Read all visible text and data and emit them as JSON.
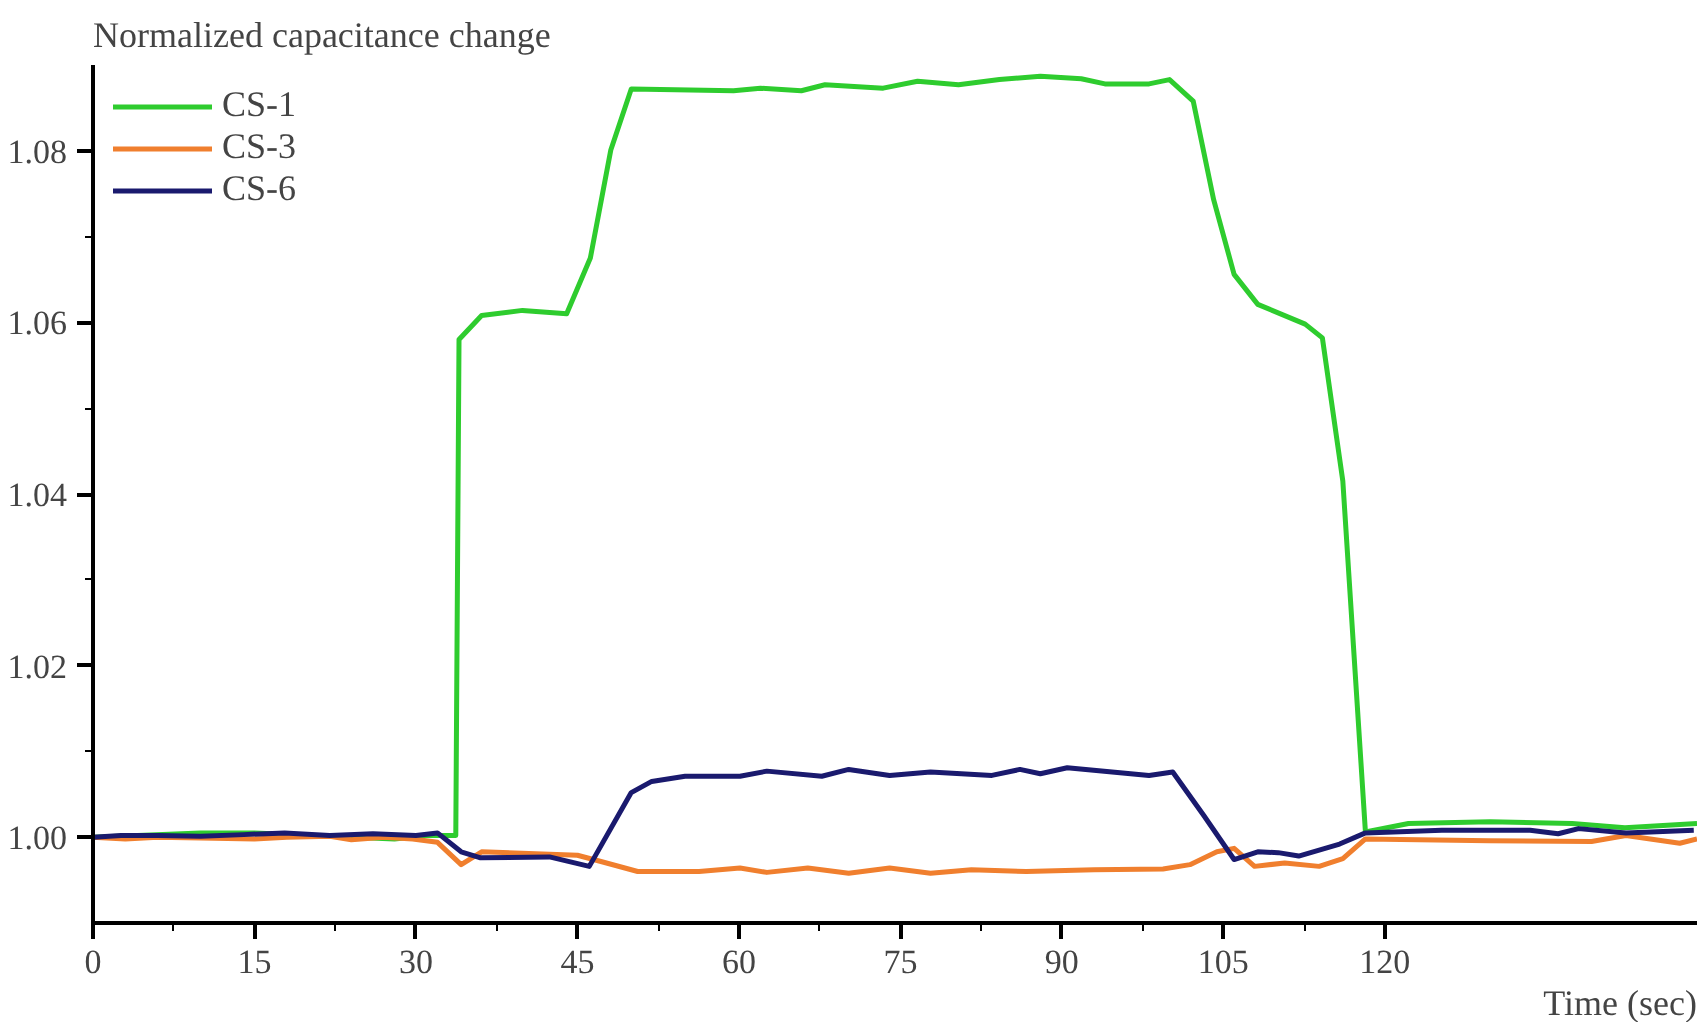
{
  "chart_data": {
    "type": "line",
    "ylabel": "Normalized capacitance change",
    "xlabel": "Time (sec)",
    "xlim": [
      0,
      149
    ],
    "ylim": [
      0.99,
      1.09
    ],
    "xticks": [
      0,
      15,
      30,
      45,
      60,
      75,
      90,
      105,
      120
    ],
    "yticks": [
      {
        "value": 1.0,
        "label": "1.00"
      },
      {
        "value": 1.02,
        "label": "1.02"
      },
      {
        "value": 1.04,
        "label": "1.04"
      },
      {
        "value": 1.06,
        "label": "1.06"
      },
      {
        "value": 1.08,
        "label": "1.08"
      }
    ],
    "grid": false,
    "legend": "top left",
    "marker": "none",
    "line_style": "solid",
    "series": [
      {
        "name": "CS-1",
        "color": "#2ecc2e",
        "x": [
          0,
          10,
          15,
          28,
          31,
          33.7,
          34.0,
          36.1,
          39.9,
          44.0,
          46.2,
          48.1,
          50.0,
          59.5,
          62.0,
          65.8,
          68.0,
          73.4,
          76.6,
          80.4,
          84.2,
          88.0,
          91.8,
          94.0,
          98.1,
          100.0,
          102.2,
          104.1,
          106.0,
          108.2,
          112.6,
          114.2,
          116.1,
          118.2,
          122.2,
          129.8,
          137.4,
          142.3,
          149
        ],
        "values": [
          1.0,
          1.0005,
          1.0005,
          0.9998,
          1.0002,
          1.0002,
          1.058,
          1.0608,
          1.0614,
          1.061,
          1.0675,
          1.0801,
          1.0872,
          1.087,
          1.0873,
          1.087,
          1.0877,
          1.0873,
          1.0881,
          1.0877,
          1.0883,
          1.0887,
          1.0884,
          1.0878,
          1.0878,
          1.0883,
          1.0858,
          1.0743,
          1.0656,
          1.0621,
          1.0598,
          1.0582,
          1.0415,
          1.0006,
          1.0016,
          1.0018,
          1.0016,
          1.0011,
          1.0016
        ]
      },
      {
        "name": "CS-3",
        "color": "#f07f2e",
        "x": [
          0,
          3,
          6,
          10,
          15,
          18,
          22,
          24,
          27,
          29.7,
          32,
          34.2,
          36.1,
          45,
          47.1,
          50.6,
          56.3,
          60.1,
          62.6,
          66.4,
          70.2,
          74,
          77.8,
          81.6,
          86.7,
          93,
          99.4,
          101.9,
          104.4,
          106,
          107.9,
          110.7,
          113.9,
          116.1,
          118.2,
          129.7,
          139.2,
          142.4,
          147.4,
          149
        ],
        "values": [
          1.0,
          0.9998,
          1.0,
          0.9999,
          0.9998,
          1.0,
          1.0001,
          0.9997,
          1.0,
          0.9998,
          0.9994,
          0.9968,
          0.9983,
          0.9979,
          0.9972,
          0.996,
          0.996,
          0.9964,
          0.9959,
          0.9964,
          0.9958,
          0.9964,
          0.9958,
          0.9962,
          0.996,
          0.9962,
          0.9963,
          0.9968,
          0.9983,
          0.9987,
          0.9966,
          0.997,
          0.9966,
          0.9975,
          0.9998,
          0.9996,
          0.9995,
          1.0002,
          0.9993,
          0.9998
        ]
      },
      {
        "name": "CS-6",
        "color": "#1a1a6e",
        "x": [
          0,
          2.6,
          6,
          10,
          14,
          17.8,
          22,
          26,
          30,
          32,
          34.2,
          36,
          42.4,
          46.1,
          50,
          51.9,
          55,
          60.1,
          62.6,
          67.7,
          70.2,
          74,
          77.8,
          83.5,
          86.1,
          88,
          90.5,
          98.1,
          100.3,
          103.2,
          106,
          108.2,
          110.1,
          112,
          115.8,
          118.2,
          125.3,
          133.5,
          136.1,
          138,
          142.4,
          148.7
        ],
        "values": [
          1.0,
          1.0002,
          1.0002,
          1.0001,
          1.0003,
          1.0005,
          1.0002,
          1.0004,
          1.0002,
          1.0005,
          0.9983,
          0.9976,
          0.9977,
          0.9966,
          1.0052,
          1.0065,
          1.0071,
          1.0071,
          1.0077,
          1.0071,
          1.0079,
          1.0072,
          1.0076,
          1.0072,
          1.0079,
          1.0074,
          1.0081,
          1.0072,
          1.0076,
          1.0025,
          0.9974,
          0.9983,
          0.9982,
          0.9978,
          0.9992,
          1.0005,
          1.0008,
          1.0008,
          1.0004,
          1.001,
          1.0005,
          1.0008
        ]
      }
    ]
  }
}
